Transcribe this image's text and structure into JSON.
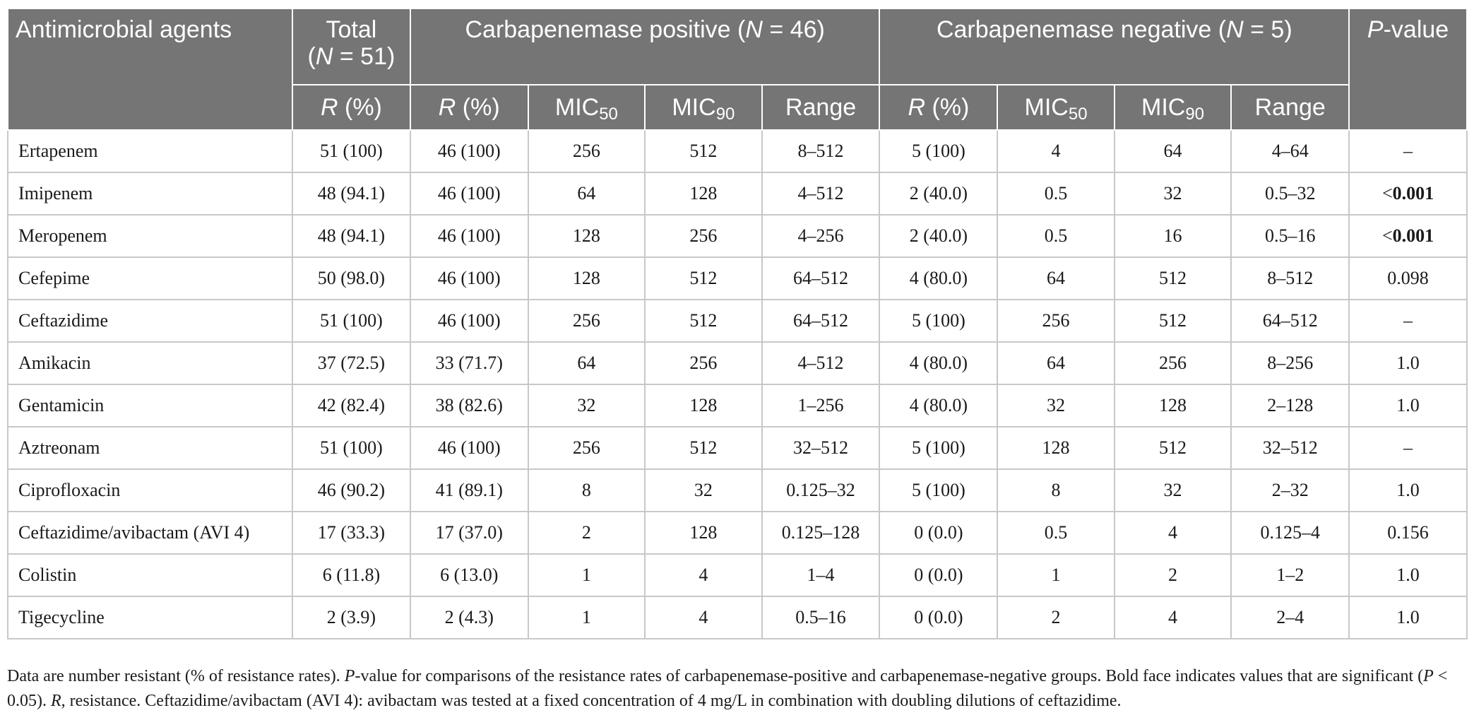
{
  "header": {
    "agents": "Antimicrobial agents",
    "total_line1": "Total",
    "total_open": "(",
    "total_n": "N",
    "total_eq": " = 51)",
    "pos_pre": "Carbapenemase positive (",
    "pos_n": "N",
    "pos_post": " = 46)",
    "neg_pre": "Carbapenemase negative (",
    "neg_n": "N",
    "neg_post": " = 5)",
    "p_italic": "P",
    "p_rest": "-value",
    "r_italic": "R",
    "r_rest": " (%)",
    "mic": "MIC",
    "sub50": "50",
    "sub90": "90",
    "range": "Range"
  },
  "rows": [
    {
      "agent": "Ertapenem",
      "total": "51 (100)",
      "pos_r": "46 (100)",
      "pos_mic50": "256",
      "pos_mic90": "512",
      "pos_range": "8–512",
      "neg_r": "5 (100)",
      "neg_mic50": "4",
      "neg_mic90": "64",
      "neg_range": "4–64",
      "p_prefix": "",
      "p_value": "–",
      "p_bold": false
    },
    {
      "agent": "Imipenem",
      "total": "48 (94.1)",
      "pos_r": "46 (100)",
      "pos_mic50": "64",
      "pos_mic90": "128",
      "pos_range": "4–512",
      "neg_r": "2 (40.0)",
      "neg_mic50": "0.5",
      "neg_mic90": "32",
      "neg_range": "0.5–32",
      "p_prefix": "<",
      "p_value": "0.001",
      "p_bold": true
    },
    {
      "agent": "Meropenem",
      "total": "48 (94.1)",
      "pos_r": "46 (100)",
      "pos_mic50": "128",
      "pos_mic90": "256",
      "pos_range": "4–256",
      "neg_r": "2 (40.0)",
      "neg_mic50": "0.5",
      "neg_mic90": "16",
      "neg_range": "0.5–16",
      "p_prefix": "<",
      "p_value": "0.001",
      "p_bold": true
    },
    {
      "agent": "Cefepime",
      "total": "50 (98.0)",
      "pos_r": "46 (100)",
      "pos_mic50": "128",
      "pos_mic90": "512",
      "pos_range": "64–512",
      "neg_r": "4 (80.0)",
      "neg_mic50": "64",
      "neg_mic90": "512",
      "neg_range": "8–512",
      "p_prefix": "",
      "p_value": "0.098",
      "p_bold": false
    },
    {
      "agent": "Ceftazidime",
      "total": "51 (100)",
      "pos_r": "46 (100)",
      "pos_mic50": "256",
      "pos_mic90": "512",
      "pos_range": "64–512",
      "neg_r": "5 (100)",
      "neg_mic50": "256",
      "neg_mic90": "512",
      "neg_range": "64–512",
      "p_prefix": "",
      "p_value": "–",
      "p_bold": false
    },
    {
      "agent": "Amikacin",
      "total": "37 (72.5)",
      "pos_r": "33 (71.7)",
      "pos_mic50": "64",
      "pos_mic90": "256",
      "pos_range": "4–512",
      "neg_r": "4 (80.0)",
      "neg_mic50": "64",
      "neg_mic90": "256",
      "neg_range": "8–256",
      "p_prefix": "",
      "p_value": "1.0",
      "p_bold": false
    },
    {
      "agent": "Gentamicin",
      "total": "42 (82.4)",
      "pos_r": "38 (82.6)",
      "pos_mic50": "32",
      "pos_mic90": "128",
      "pos_range": "1–256",
      "neg_r": "4 (80.0)",
      "neg_mic50": "32",
      "neg_mic90": "128",
      "neg_range": "2–128",
      "p_prefix": "",
      "p_value": "1.0",
      "p_bold": false
    },
    {
      "agent": "Aztreonam",
      "total": "51 (100)",
      "pos_r": "46 (100)",
      "pos_mic50": "256",
      "pos_mic90": "512",
      "pos_range": "32–512",
      "neg_r": "5 (100)",
      "neg_mic50": "128",
      "neg_mic90": "512",
      "neg_range": "32–512",
      "p_prefix": "",
      "p_value": "–",
      "p_bold": false
    },
    {
      "agent": "Ciprofloxacin",
      "total": "46 (90.2)",
      "pos_r": "41 (89.1)",
      "pos_mic50": "8",
      "pos_mic90": "32",
      "pos_range": "0.125–32",
      "neg_r": "5 (100)",
      "neg_mic50": "8",
      "neg_mic90": "32",
      "neg_range": "2–32",
      "p_prefix": "",
      "p_value": "1.0",
      "p_bold": false
    },
    {
      "agent": "Ceftazidime/avibactam (AVI 4)",
      "total": "17 (33.3)",
      "pos_r": "17 (37.0)",
      "pos_mic50": "2",
      "pos_mic90": "128",
      "pos_range": "0.125–128",
      "neg_r": "0 (0.0)",
      "neg_mic50": "0.5",
      "neg_mic90": "4",
      "neg_range": "0.125–4",
      "p_prefix": "",
      "p_value": "0.156",
      "p_bold": false
    },
    {
      "agent": "Colistin",
      "total": "6 (11.8)",
      "pos_r": "6 (13.0)",
      "pos_mic50": "1",
      "pos_mic90": "4",
      "pos_range": "1–4",
      "neg_r": "0 (0.0)",
      "neg_mic50": "1",
      "neg_mic90": "2",
      "neg_range": "1–2",
      "p_prefix": "",
      "p_value": "1.0",
      "p_bold": false
    },
    {
      "agent": "Tigecycline",
      "total": "2 (3.9)",
      "pos_r": "2 (4.3)",
      "pos_mic50": "1",
      "pos_mic90": "4",
      "pos_range": "0.5–16",
      "neg_r": "0 (0.0)",
      "neg_mic50": "2",
      "neg_mic90": "4",
      "neg_range": "2–4",
      "p_prefix": "",
      "p_value": "1.0",
      "p_bold": false
    }
  ],
  "footnote": {
    "s1": "Data are number resistant (% of resistance rates). ",
    "p1_italic": "P",
    "s2": "-value for comparisons of the resistance rates of carbapenemase-positive and carbapenemase-negative groups. Bold face indicates values that are significant (",
    "p2_italic": "P",
    "s3": " < 0.05). ",
    "r_italic": "R",
    "s4": ", resistance. Ceftazidime/avibactam (AVI 4): avibactam was tested at a fixed concentration of 4 mg/L in combination with doubling dilutions of ceftazidime."
  }
}
